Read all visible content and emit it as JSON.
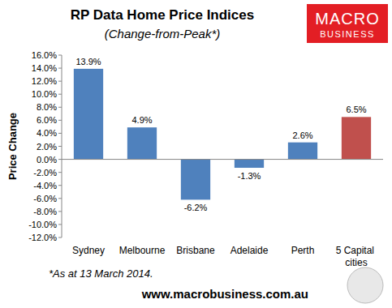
{
  "chart_data": {
    "type": "bar",
    "title": "RP Data Home Price Indices",
    "subtitle": "(Change-from-Peak*)",
    "y_label": "Price Change",
    "categories": [
      "Sydney",
      "Melbourne",
      "Brisbane",
      "Adelaide",
      "Perth",
      "5 Capital cities"
    ],
    "values": [
      13.9,
      4.9,
      -6.2,
      -1.3,
      2.6,
      6.5
    ],
    "value_labels": [
      "13.9%",
      "4.9%",
      "-6.2%",
      "-1.3%",
      "2.6%",
      "6.5%"
    ],
    "colors": [
      "#4f81bd",
      "#4f81bd",
      "#4f81bd",
      "#4f81bd",
      "#4f81bd",
      "#c0504d"
    ],
    "data_labels": true,
    "grid": false,
    "ylim": [
      -12,
      16
    ],
    "yticks": [
      {
        "value": 16,
        "label": "16.0%"
      },
      {
        "value": 14,
        "label": "14.0%"
      },
      {
        "value": 12,
        "label": "12.0%"
      },
      {
        "value": 10,
        "label": "10.0%"
      },
      {
        "value": 8,
        "label": "8.0%"
      },
      {
        "value": 6,
        "label": "6.0%"
      },
      {
        "value": 4,
        "label": "4.0%"
      },
      {
        "value": 2,
        "label": "2.0%"
      },
      {
        "value": 0,
        "label": "0.0%"
      },
      {
        "value": -2,
        "label": "-2.0%"
      },
      {
        "value": -4,
        "label": "-4.0%"
      },
      {
        "value": -6,
        "label": "-6.0%"
      },
      {
        "value": -8,
        "label": "-8.0%"
      },
      {
        "value": -10,
        "label": "-10.0%"
      },
      {
        "value": -12,
        "label": "-12.0%"
      }
    ],
    "annotations": [
      "*As at 13 March 2014.",
      "www.macrobusiness.com.au",
      "MACRO",
      "BUSINESS"
    ]
  }
}
